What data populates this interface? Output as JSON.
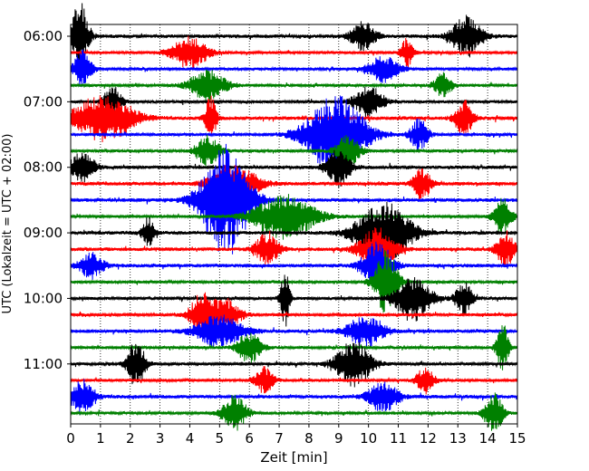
{
  "chart_data": {
    "type": "line",
    "title": "",
    "xlabel": "Zeit  [min]",
    "ylabel": "UTC (Lokalzeit = UTC + 02:00)",
    "xlim": [
      0,
      15
    ],
    "x_ticks": [
      0,
      1,
      2,
      3,
      4,
      5,
      6,
      7,
      8,
      9,
      10,
      11,
      12,
      13,
      14,
      15
    ],
    "y_tick_labels": [
      "06:00",
      "07:00",
      "08:00",
      "09:00",
      "10:00",
      "11:00"
    ],
    "grid": "vertical dotted lines at each minute",
    "trace_minutes": 15,
    "color_cycle": [
      "#000000",
      "#ff0000",
      "#0000ff",
      "#008000"
    ],
    "series": [
      {
        "start": "06:00",
        "color": "#000000",
        "amp": 0.6,
        "events": [
          [
            0.3,
            1.3,
            0.3
          ],
          [
            9.8,
            0.6,
            0.4
          ],
          [
            13.3,
            0.8,
            0.5
          ]
        ]
      },
      {
        "start": "06:15",
        "color": "#ff0000",
        "amp": 0.5,
        "events": [
          [
            4.0,
            0.6,
            0.6
          ],
          [
            11.3,
            0.6,
            0.2
          ]
        ]
      },
      {
        "start": "06:30",
        "color": "#0000ff",
        "amp": 0.5,
        "events": [
          [
            0.4,
            0.7,
            0.3
          ],
          [
            10.5,
            0.5,
            0.5
          ]
        ]
      },
      {
        "start": "06:45",
        "color": "#008000",
        "amp": 0.5,
        "events": [
          [
            4.6,
            0.6,
            0.6
          ],
          [
            12.5,
            0.5,
            0.3
          ]
        ]
      },
      {
        "start": "07:00",
        "color": "#000000",
        "amp": 0.5,
        "events": [
          [
            1.4,
            0.6,
            0.3
          ],
          [
            10.0,
            0.6,
            0.5
          ]
        ]
      },
      {
        "start": "07:15",
        "color": "#ff0000",
        "amp": 0.6,
        "events": [
          [
            1.1,
            0.9,
            1.0
          ],
          [
            4.7,
            0.8,
            0.2
          ],
          [
            13.2,
            0.7,
            0.3
          ]
        ]
      },
      {
        "start": "07:30",
        "color": "#0000ff",
        "amp": 0.5,
        "events": [
          [
            8.9,
            1.5,
            1.0
          ],
          [
            11.7,
            0.6,
            0.3
          ]
        ]
      },
      {
        "start": "07:45",
        "color": "#008000",
        "amp": 0.5,
        "events": [
          [
            4.6,
            0.6,
            0.4
          ],
          [
            9.3,
            0.6,
            0.4
          ]
        ]
      },
      {
        "start": "08:00",
        "color": "#000000",
        "amp": 0.6,
        "events": [
          [
            0.4,
            0.6,
            0.4
          ],
          [
            9.0,
            0.7,
            0.4
          ]
        ]
      },
      {
        "start": "08:15",
        "color": "#ff0000",
        "amp": 0.6,
        "events": [
          [
            5.5,
            0.7,
            0.8
          ],
          [
            11.8,
            0.6,
            0.3
          ]
        ]
      },
      {
        "start": "08:30",
        "color": "#0000ff",
        "amp": 0.6,
        "events": [
          [
            5.2,
            2.2,
            0.8
          ]
        ]
      },
      {
        "start": "08:45",
        "color": "#008000",
        "amp": 0.5,
        "events": [
          [
            7.2,
            0.9,
            1.0
          ],
          [
            14.5,
            0.7,
            0.3
          ]
        ]
      },
      {
        "start": "09:00",
        "color": "#000000",
        "amp": 0.6,
        "events": [
          [
            2.6,
            0.6,
            0.2
          ],
          [
            10.5,
            1.2,
            0.9
          ]
        ]
      },
      {
        "start": "09:15",
        "color": "#ff0000",
        "amp": 0.6,
        "events": [
          [
            6.6,
            0.6,
            0.4
          ],
          [
            10.3,
            0.8,
            0.6
          ],
          [
            14.6,
            0.7,
            0.3
          ]
        ]
      },
      {
        "start": "09:30",
        "color": "#0000ff",
        "amp": 0.6,
        "events": [
          [
            0.7,
            0.5,
            0.4
          ],
          [
            10.3,
            0.9,
            0.5
          ]
        ]
      },
      {
        "start": "09:45",
        "color": "#008000",
        "amp": 0.5,
        "events": [
          [
            10.6,
            1.2,
            0.4
          ]
        ]
      },
      {
        "start": "10:00",
        "color": "#000000",
        "amp": 0.5,
        "events": [
          [
            7.2,
            1.1,
            0.15
          ],
          [
            11.5,
            0.9,
            0.6
          ],
          [
            13.2,
            0.6,
            0.3
          ]
        ]
      },
      {
        "start": "10:15",
        "color": "#ff0000",
        "amp": 0.5,
        "events": [
          [
            4.4,
            0.8,
            0.4
          ],
          [
            5.2,
            0.6,
            0.5
          ]
        ]
      },
      {
        "start": "10:30",
        "color": "#0000ff",
        "amp": 0.6,
        "events": [
          [
            5.0,
            0.6,
            0.8
          ],
          [
            9.9,
            0.6,
            0.6
          ]
        ]
      },
      {
        "start": "10:45",
        "color": "#008000",
        "amp": 0.5,
        "events": [
          [
            6.0,
            0.6,
            0.4
          ],
          [
            14.5,
            0.9,
            0.2
          ]
        ]
      },
      {
        "start": "11:00",
        "color": "#000000",
        "amp": 0.5,
        "events": [
          [
            2.2,
            0.9,
            0.3
          ],
          [
            9.5,
            0.9,
            0.6
          ]
        ]
      },
      {
        "start": "11:15",
        "color": "#ff0000",
        "amp": 0.5,
        "events": [
          [
            6.5,
            0.5,
            0.3
          ],
          [
            11.9,
            0.5,
            0.3
          ]
        ]
      },
      {
        "start": "11:30",
        "color": "#0000ff",
        "amp": 0.6,
        "events": [
          [
            0.4,
            0.7,
            0.4
          ],
          [
            10.5,
            0.6,
            0.5
          ]
        ]
      },
      {
        "start": "11:45",
        "color": "#008000",
        "amp": 0.5,
        "events": [
          [
            5.5,
            0.7,
            0.4
          ],
          [
            14.2,
            0.8,
            0.3
          ]
        ]
      }
    ]
  }
}
